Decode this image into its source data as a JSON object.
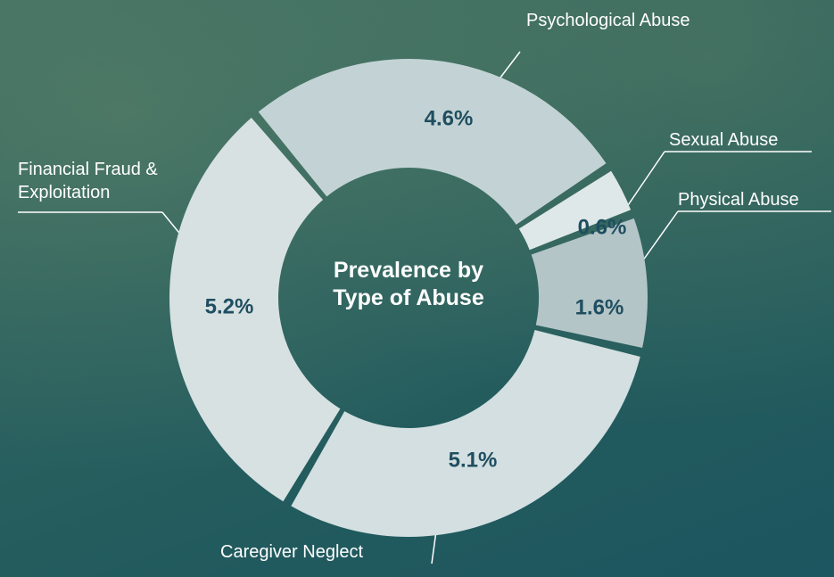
{
  "chart_data": {
    "type": "donut",
    "title": "Prevalence by Type of Abuse",
    "categories": [
      "Psychological Abuse",
      "Sexual Abuse",
      "Physical Abuse",
      "Caregiver Neglect",
      "Financial Fraud & Exploitation"
    ],
    "values": [
      4.6,
      0.6,
      1.6,
      5.1,
      5.2
    ],
    "value_labels": [
      "4.6%",
      "0.6%",
      "1.6%",
      "5.1%",
      "5.2%"
    ],
    "colors": [
      "#c3d3d5",
      "#dfe8e8",
      "#b4c5c7",
      "#d3dfe0",
      "#d7e1e2"
    ]
  }
}
